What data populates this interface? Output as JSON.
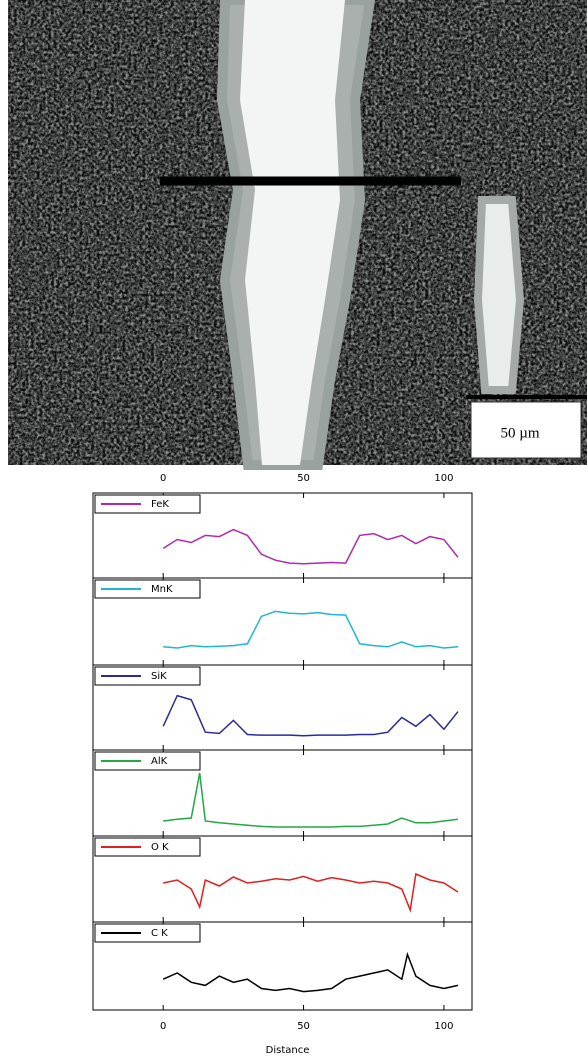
{
  "image": {
    "scale_bar": "50 µm"
  },
  "chart_data": [
    {
      "type": "line",
      "x": [
        0,
        5,
        10,
        15,
        20,
        25,
        30,
        35,
        40,
        45,
        50,
        55,
        60,
        65,
        70,
        75,
        80,
        85,
        90,
        95,
        100,
        105
      ],
      "series": [
        {
          "name": "FeK",
          "color": "#b02ab0",
          "values": [
            40,
            55,
            50,
            62,
            60,
            72,
            62,
            30,
            20,
            15,
            14,
            15,
            16,
            15,
            62,
            65,
            55,
            62,
            48,
            60,
            55,
            25
          ]
        }
      ],
      "xlim": [
        -25,
        110
      ],
      "ylim": [
        0,
        100
      ],
      "xticks": [
        0,
        50,
        100
      ]
    },
    {
      "type": "line",
      "x": [
        0,
        5,
        10,
        15,
        20,
        25,
        30,
        35,
        40,
        45,
        50,
        55,
        60,
        65,
        70,
        75,
        80,
        85,
        90,
        95,
        100,
        105
      ],
      "series": [
        {
          "name": "MnK",
          "color": "#1fb8d0",
          "values": [
            20,
            18,
            22,
            20,
            21,
            22,
            25,
            70,
            78,
            75,
            74,
            76,
            73,
            72,
            25,
            22,
            20,
            28,
            20,
            22,
            18,
            20
          ]
        }
      ],
      "xlim": [
        -25,
        110
      ],
      "ylim": [
        0,
        100
      ],
      "xticks": [
        0,
        50,
        100
      ]
    },
    {
      "type": "line",
      "x": [
        0,
        5,
        10,
        15,
        20,
        25,
        30,
        35,
        40,
        45,
        50,
        55,
        60,
        65,
        70,
        75,
        80,
        85,
        90,
        95,
        100,
        105
      ],
      "series": [
        {
          "name": "SiK",
          "color": "#2a2a9a",
          "values": [
            30,
            82,
            75,
            20,
            18,
            40,
            16,
            15,
            15,
            15,
            14,
            15,
            15,
            15,
            16,
            16,
            20,
            45,
            30,
            50,
            25,
            55
          ]
        }
      ],
      "xlim": [
        -25,
        110
      ],
      "ylim": [
        0,
        100
      ],
      "xticks": [
        0,
        50,
        100
      ]
    },
    {
      "type": "line",
      "x": [
        0,
        5,
        10,
        13,
        15,
        20,
        25,
        30,
        35,
        40,
        45,
        50,
        55,
        60,
        65,
        70,
        75,
        80,
        85,
        90,
        95,
        100,
        105
      ],
      "series": [
        {
          "name": "AlK",
          "color": "#22a844",
          "values": [
            15,
            18,
            20,
            95,
            15,
            12,
            10,
            8,
            6,
            5,
            5,
            5,
            5,
            5,
            6,
            6,
            8,
            10,
            20,
            12,
            12,
            15,
            18
          ]
        }
      ],
      "xlim": [
        -25,
        110
      ],
      "ylim": [
        0,
        100
      ],
      "xticks": [
        0,
        50,
        100
      ]
    },
    {
      "type": "line",
      "x": [
        0,
        5,
        10,
        13,
        15,
        20,
        25,
        30,
        35,
        40,
        45,
        50,
        55,
        60,
        65,
        70,
        75,
        80,
        85,
        88,
        90,
        95,
        100,
        105
      ],
      "series": [
        {
          "name": "O K",
          "color": "#e02020",
          "values": [
            55,
            60,
            45,
            15,
            60,
            50,
            65,
            55,
            58,
            62,
            60,
            66,
            58,
            64,
            60,
            55,
            58,
            55,
            45,
            10,
            70,
            60,
            55,
            40
          ]
        }
      ],
      "xlim": [
        -25,
        110
      ],
      "ylim": [
        0,
        100
      ],
      "xticks": [
        0,
        50,
        100
      ]
    },
    {
      "type": "line",
      "x": [
        0,
        5,
        10,
        15,
        20,
        25,
        30,
        35,
        40,
        45,
        50,
        55,
        60,
        65,
        70,
        75,
        80,
        85,
        87,
        90,
        95,
        100,
        105
      ],
      "series": [
        {
          "name": "C K",
          "color": "#000000",
          "values": [
            40,
            50,
            35,
            30,
            45,
            35,
            40,
            25,
            22,
            25,
            20,
            22,
            25,
            40,
            45,
            50,
            55,
            40,
            80,
            45,
            30,
            25,
            30
          ]
        }
      ],
      "xlim": [
        -25,
        110
      ],
      "ylim": [
        0,
        100
      ],
      "xticks": [
        0,
        50,
        100
      ],
      "xlabel": "Distance"
    }
  ]
}
